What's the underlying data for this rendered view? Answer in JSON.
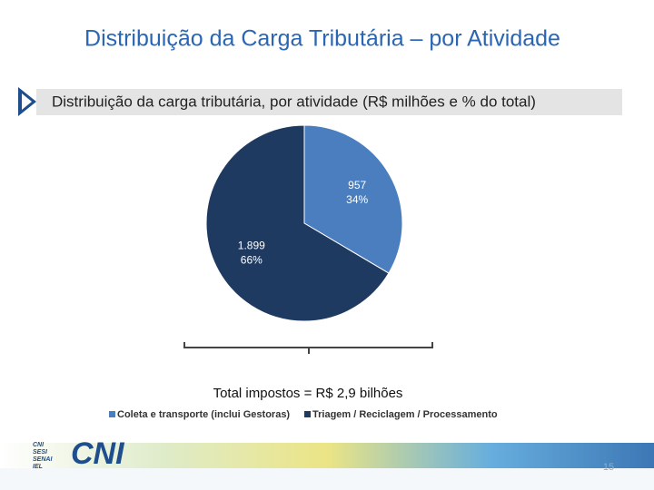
{
  "slide": {
    "title": "Distribuição da Carga Tributária – por Atividade",
    "subtitle": "Distribuição da carga tributária, por atividade (R$ milhões e % do total)",
    "logo": "CNI",
    "logo_small": [
      "CNI",
      "SESI",
      "SENAI",
      "IEL"
    ],
    "page_number": "15"
  },
  "chart_data": {
    "type": "pie",
    "categories": [
      "Coleta e transporte (inclui Gestoras)",
      "Triagem / Reciclagem / Processamento"
    ],
    "values": [
      957,
      1899
    ],
    "value_labels": [
      "957",
      "1.899"
    ],
    "percents": [
      34,
      66
    ],
    "percent_labels": [
      "34%",
      "66%"
    ],
    "colors": [
      "#4a7ebf",
      "#1f3a60"
    ],
    "annotation": "Total impostos = R$ 2,9 bilhões",
    "legend": "bottom"
  }
}
